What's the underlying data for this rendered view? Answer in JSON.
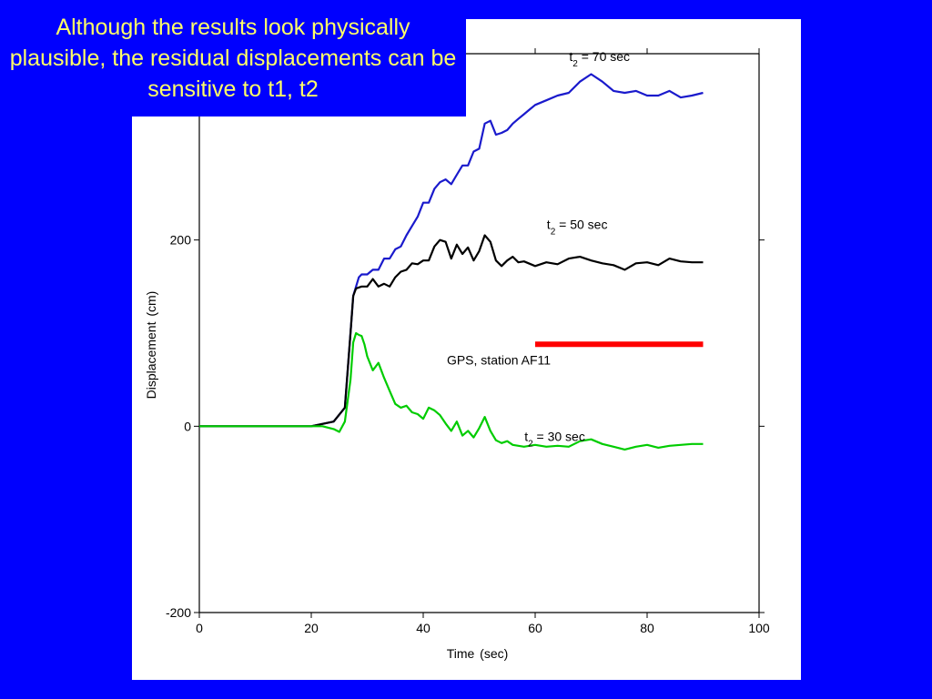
{
  "slide": {
    "title": "Although the results look physically plausible, the residual displacements can be sensitive to t1, t2",
    "title_color": "#ffff66",
    "background_color": "#0000fe"
  },
  "chart_data": {
    "type": "line",
    "xlabel": "Time (sec)",
    "ylabel": "Displacement (cm)",
    "xlim": [
      0,
      100
    ],
    "ylim": [
      -200,
      400
    ],
    "x_ticks": [
      0,
      20,
      40,
      60,
      80,
      100
    ],
    "x_tick_labels": [
      "0",
      "20",
      "40",
      "60",
      "80",
      "100"
    ],
    "y_ticks": [
      -200,
      0,
      200
    ],
    "y_tick_labels": [
      "-200",
      "0",
      "200"
    ],
    "grid": false,
    "series": [
      {
        "name": "t2 = 70 sec",
        "label_main": "t",
        "label_sub": "2",
        "label_rest": " = 70 sec",
        "color": "#1a1acc",
        "x": [
          0,
          20,
          24,
          26,
          27,
          27.5,
          28,
          28.5,
          29,
          30,
          31,
          32,
          33,
          34,
          35,
          36,
          37,
          38,
          39,
          40,
          41,
          42,
          43,
          44,
          45,
          46,
          47,
          48,
          49,
          50,
          51,
          52,
          53,
          54,
          55,
          56,
          57,
          58,
          59,
          60,
          62,
          64,
          66,
          68,
          70,
          72,
          74,
          76,
          78,
          80,
          82,
          84,
          86,
          88,
          90
        ],
        "values": [
          0,
          0,
          5,
          20,
          100,
          140,
          150,
          160,
          163,
          163,
          168,
          168,
          180,
          180,
          190,
          193,
          205,
          215,
          225,
          240,
          240,
          255,
          262,
          265,
          260,
          270,
          280,
          280,
          295,
          298,
          325,
          328,
          313,
          315,
          318,
          325,
          330,
          335,
          340,
          345,
          350,
          355,
          358,
          370,
          378,
          370,
          360,
          358,
          360,
          355,
          355,
          360,
          353,
          355,
          358
        ]
      },
      {
        "name": "t2 = 50 sec",
        "label_main": "t",
        "label_sub": "2",
        "label_rest": " = 50 sec",
        "color": "#000000",
        "x": [
          0,
          20,
          24,
          26,
          27,
          27.5,
          28,
          29,
          30,
          31,
          32,
          33,
          34,
          35,
          36,
          37,
          38,
          39,
          40,
          41,
          42,
          43,
          44,
          45,
          46,
          47,
          48,
          49,
          50,
          51,
          52,
          53,
          54,
          55,
          56,
          57,
          58,
          60,
          62,
          64,
          66,
          68,
          70,
          72,
          74,
          76,
          78,
          80,
          82,
          84,
          86,
          88,
          90
        ],
        "values": [
          0,
          0,
          5,
          20,
          100,
          140,
          148,
          150,
          150,
          158,
          150,
          153,
          150,
          160,
          166,
          168,
          175,
          174,
          178,
          178,
          193,
          200,
          198,
          180,
          195,
          185,
          192,
          178,
          188,
          205,
          198,
          178,
          172,
          178,
          182,
          176,
          177,
          172,
          176,
          174,
          180,
          182,
          178,
          175,
          173,
          168,
          175,
          176,
          173,
          180,
          177,
          176,
          176
        ]
      },
      {
        "name": "t2 = 30 sec",
        "label_main": "t",
        "label_sub": "2",
        "label_rest": " = 30 sec",
        "color": "#00cc00",
        "x": [
          0,
          20,
          22,
          24,
          25,
          26,
          27,
          27.5,
          28,
          28.5,
          29,
          29.5,
          30,
          31,
          32,
          33,
          34,
          35,
          36,
          37,
          38,
          39,
          40,
          41,
          42,
          43,
          44,
          45,
          46,
          47,
          48,
          49,
          50,
          51,
          52,
          53,
          54,
          55,
          56,
          58,
          60,
          62,
          64,
          66,
          68,
          70,
          72,
          74,
          76,
          78,
          80,
          82,
          84,
          86,
          88,
          90
        ],
        "values": [
          0,
          0,
          0,
          -3,
          -6,
          5,
          50,
          90,
          100,
          98,
          97,
          88,
          75,
          60,
          68,
          52,
          38,
          24,
          20,
          22,
          15,
          13,
          8,
          20,
          17,
          12,
          3,
          -5,
          5,
          -10,
          -5,
          -12,
          -2,
          10,
          -5,
          -15,
          -18,
          -16,
          -20,
          -22,
          -20,
          -22,
          -21,
          -22,
          -16,
          -14,
          -19,
          -22,
          -25,
          -22,
          -20,
          -23,
          -21,
          -20,
          -19,
          -19
        ]
      }
    ],
    "annotations": [
      {
        "name": "gps-reference",
        "text": "GPS, station AF11",
        "y": 88,
        "x_range": [
          60,
          90
        ],
        "color": "#ff0000"
      }
    ]
  }
}
